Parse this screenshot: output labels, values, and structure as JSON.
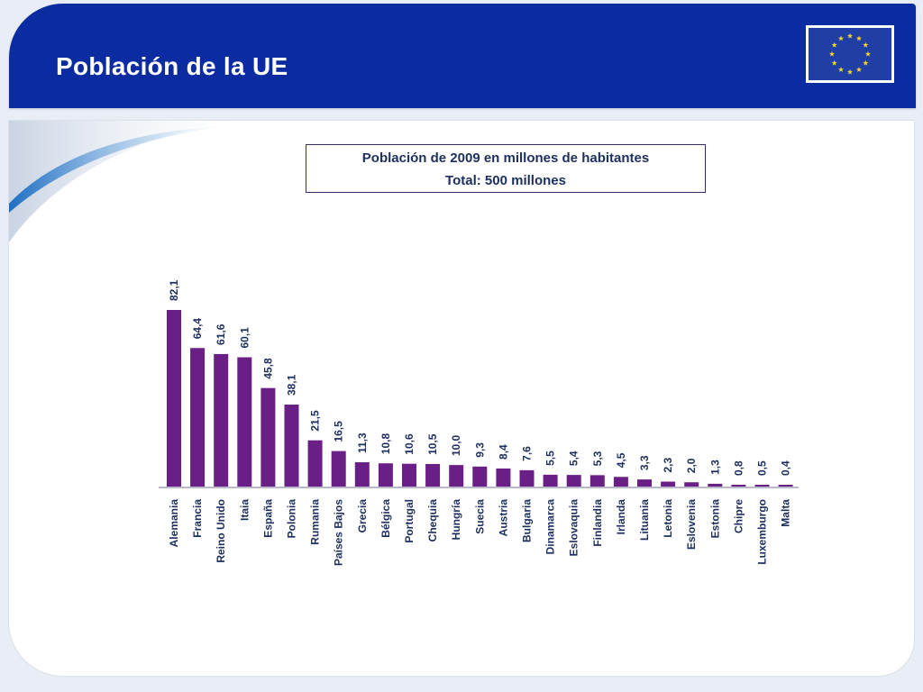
{
  "header": {
    "title": "Población de la UE"
  },
  "flag": {
    "icon": "eu-flag-icon",
    "background": "#1f3fa6",
    "star_color": "#f5d328"
  },
  "colors": {
    "header_blue": "#0a2ca0",
    "bar_purple": "#6a1f86",
    "text_navy": "#1c2f5e"
  },
  "chart_data": {
    "type": "bar",
    "title": "Población de 2009 en millones de habitantes",
    "subtitle": "Total: 500 millones",
    "xlabel": "",
    "ylabel": "",
    "ylim": [
      0,
      82.1
    ],
    "grid": false,
    "categories": [
      "Alemania",
      "Francia",
      "Reino Unido",
      "Itaia",
      "España",
      "Polonia",
      "Rumania",
      "Países Bajos",
      "Grecia",
      "Bélgica",
      "Portugal",
      "Chequia",
      "Hungría",
      "Suecia",
      "Austria",
      "Bulgaria",
      "Dinamarca",
      "Eslovaquia",
      "Finlandia",
      "Irlanda",
      "Lituania",
      "Letonia",
      "Eslovenia",
      "Estonia",
      "Chipre",
      "Luxemburgo",
      "Malta"
    ],
    "values": [
      82.1,
      64.4,
      61.6,
      60.1,
      45.8,
      38.1,
      21.5,
      16.5,
      11.3,
      10.8,
      10.6,
      10.5,
      10.0,
      9.3,
      8.4,
      7.6,
      5.5,
      5.4,
      5.3,
      4.5,
      3.3,
      2.3,
      2.0,
      1.3,
      0.8,
      0.5,
      0.4
    ],
    "value_labels": [
      "82,1",
      "64,4",
      "61,6",
      "60,1",
      "45,8",
      "38,1",
      "21,5",
      "16,5",
      "11,3",
      "10,8",
      "10,6",
      "10,5",
      "10,0",
      "9,3",
      "8,4",
      "7,6",
      "5,5",
      "5,4",
      "5,3",
      "4,5",
      "3,3",
      "2,3",
      "2,0",
      "1,3",
      "0,8",
      "0,5",
      "0,4"
    ]
  }
}
